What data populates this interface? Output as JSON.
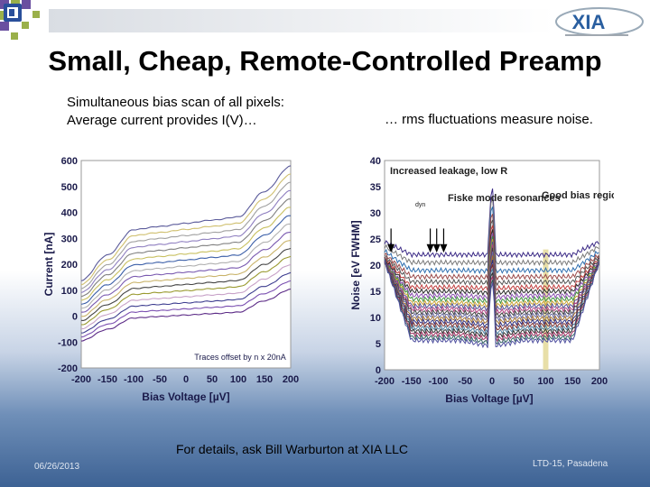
{
  "slide": {
    "title": "Small, Cheap, Remote-Controlled Preamp",
    "caption_left_line1": "Simultaneous bias scan of all pixels:",
    "caption_left_line2": "Average current provides I(V)…",
    "caption_right": "… rms fluctuations measure noise.",
    "footer_center": "For details, ask Bill Warburton at XIA LLC",
    "footer_date": "06/26/2013",
    "footer_right": "LTD-15, Pasadena",
    "logo_right_text": "XIA"
  },
  "chart_data": [
    {
      "type": "line",
      "title": "",
      "xlabel": "Bias Voltage [µV]",
      "ylabel": "Current [nA]",
      "xlim": [
        -200,
        200
      ],
      "ylim": [
        -200,
        600
      ],
      "xticks": [
        "-200",
        "-150",
        "-100",
        "-50",
        "0",
        "50",
        "100",
        "150",
        "200"
      ],
      "yticks": [
        "600",
        "500",
        "400",
        "300",
        "200",
        "100",
        "0",
        "-100",
        "-200"
      ],
      "annotation": "Traces offset by n x 20nA",
      "series_count": 16,
      "offset_step_nA": 20,
      "base_curve": {
        "x": [
          -200,
          -150,
          -100,
          -50,
          0,
          50,
          100,
          150,
          200
        ],
        "y": [
          -100,
          -20,
          60,
          70,
          80,
          90,
          100,
          180,
          260
        ]
      },
      "series_colors": [
        "#5b2a86",
        "#7a4fb0",
        "#3d3d8f",
        "#c8a2c8",
        "#9a9a30",
        "#444444",
        "#c9b36a",
        "#7a5ab0",
        "#b0b0b0",
        "#3b5fa8",
        "#c8c060",
        "#808080",
        "#8f7fc0",
        "#a0a0a0",
        "#d0c070",
        "#5a5a9a"
      ]
    },
    {
      "type": "line",
      "title": "",
      "xlabel": "Bias Voltage [µV]",
      "ylabel": "Noise [eV FWHM]",
      "xlim": [
        -200,
        200
      ],
      "ylim": [
        0,
        40
      ],
      "xticks": [
        "-200",
        "-150",
        "-100",
        "-50",
        "0",
        "50",
        "100",
        "150",
        "200"
      ],
      "yticks": [
        "40",
        "35",
        "30",
        "25",
        "20",
        "15",
        "10",
        "5",
        "0"
      ],
      "series_count": 22,
      "levels": [
        22,
        20.5,
        19,
        17.8,
        16.8,
        15.8,
        15,
        14.2,
        13.5,
        12.8,
        12.2,
        11.6,
        11,
        10.4,
        9.8,
        9.2,
        8.6,
        8,
        7.4,
        6.8,
        6.2,
        5.6
      ],
      "annotations": {
        "leakage": "Increased leakage, low R",
        "leakage_sub": "dyn",
        "fiske": "Fiske mode resonances",
        "good_bias": "Good bias region"
      },
      "good_bias_range": [
        95,
        105
      ],
      "series_colors": [
        "#3b2a86",
        "#7a7a7a",
        "#2f6fb0",
        "#9a4a4a",
        "#555555",
        "#c04040",
        "#2a2a2a",
        "#8a4fb0",
        "#3d8f3d",
        "#c8a030",
        "#505090",
        "#b04080",
        "#404040",
        "#6a6aa0",
        "#a07030",
        "#2f2f7f",
        "#7a2f2f",
        "#4f7fa0",
        "#303030",
        "#a03060",
        "#306060",
        "#5050a0"
      ]
    }
  ]
}
